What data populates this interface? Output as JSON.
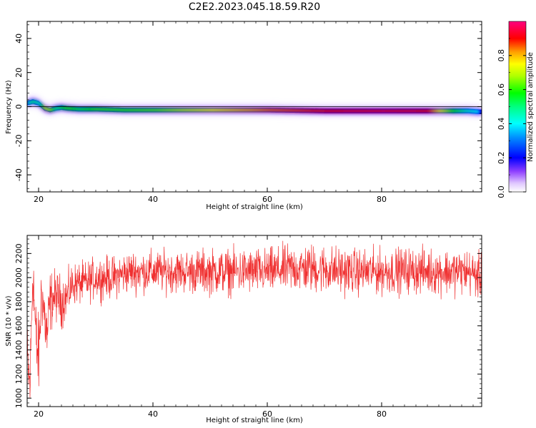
{
  "title": "C2E2.2023.045.18.59.R20",
  "colors": {
    "snr_line": "#f03030",
    "zero_line": "#000000"
  },
  "chart_data": [
    {
      "type": "heatmap",
      "xlabel": "Height of straight line (km)",
      "ylabel": "Frequency (Hz)",
      "xlim": [
        18,
        97.5
      ],
      "ylim": [
        -50,
        50
      ],
      "x_ticks": [
        20,
        40,
        60,
        80
      ],
      "y_ticks": [
        -40,
        -20,
        0,
        20,
        40
      ],
      "x_tick_labels": [
        "20",
        "40",
        "60",
        "80"
      ],
      "y_tick_labels": [
        "-40",
        "-20",
        "0",
        "20",
        "40"
      ],
      "colorbar": {
        "label": "Normalized spectral amplitude",
        "range": [
          0,
          1
        ],
        "ticks": [
          0.0,
          0.2,
          0.4,
          0.6,
          0.8
        ],
        "tick_labels": [
          "0.0",
          "0.2",
          "0.4",
          "0.6",
          "0.8"
        ],
        "colormap": "hsv"
      },
      "ridge": {
        "height_km": [
          18,
          19,
          20,
          21,
          22,
          23,
          24,
          25,
          27,
          30,
          35,
          40,
          50,
          60,
          70,
          80,
          88,
          92,
          95,
          97
        ],
        "center_hz": [
          2,
          3,
          2,
          -1,
          -2,
          -1,
          -0.5,
          -1,
          -1.5,
          -1.5,
          -2,
          -2,
          -2,
          -2,
          -2.5,
          -2.5,
          -2.5,
          -2.5,
          -2.5,
          -3
        ],
        "peak_amplitude": [
          0.45,
          0.5,
          0.45,
          0.7,
          0.65,
          0.5,
          0.55,
          0.6,
          0.55,
          0.6,
          0.6,
          0.62,
          0.75,
          0.85,
          0.9,
          0.92,
          0.9,
          0.6,
          0.45,
          0.4
        ]
      }
    },
    {
      "type": "line",
      "xlabel": "Height of straight line (km)",
      "ylabel": "SNR (10 * v/v)",
      "xlim": [
        18,
        97.5
      ],
      "ylim": [
        930,
        2350
      ],
      "x_ticks": [
        20,
        40,
        60,
        80
      ],
      "y_ticks": [
        1000,
        1200,
        1400,
        1600,
        1800,
        2000,
        2200
      ],
      "x_tick_labels": [
        "20",
        "40",
        "60",
        "80"
      ],
      "y_tick_labels": [
        "1000",
        "1200",
        "1400",
        "1600",
        "1800",
        "2000",
        "2200"
      ],
      "series": [
        {
          "x": [
            18,
            18.5,
            19,
            19.5,
            20,
            20.5,
            21,
            21.5,
            22,
            23,
            24,
            25,
            26,
            28,
            30,
            33,
            36,
            40,
            45,
            50,
            55,
            60,
            65,
            70,
            75,
            80,
            85,
            90,
            95,
            97.5
          ],
          "y": [
            1300,
            1100,
            2100,
            1500,
            1300,
            1900,
            1700,
            1500,
            1800,
            1850,
            1800,
            1850,
            1950,
            1950,
            2000,
            2000,
            2050,
            2050,
            2050,
            2050,
            2050,
            2050,
            2080,
            2070,
            2050,
            2050,
            2060,
            2050,
            2050,
            2000
          ],
          "spread": [
            250,
            200,
            250,
            250,
            250,
            200,
            200,
            220,
            180,
            150,
            150,
            130,
            120,
            120,
            120,
            120,
            120,
            120,
            120,
            130,
            130,
            130,
            140,
            140,
            130,
            130,
            130,
            130,
            130,
            130
          ]
        }
      ]
    }
  ]
}
